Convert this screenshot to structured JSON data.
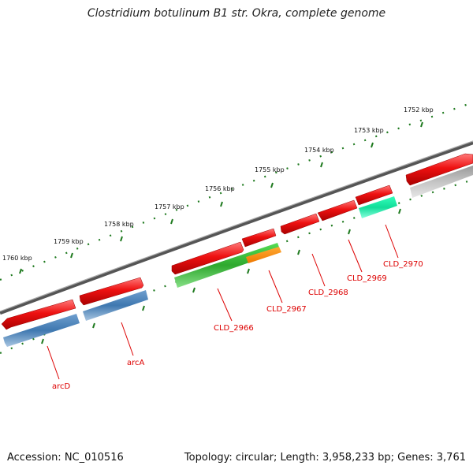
{
  "title": "Clostridium botulinum B1 str. Okra, complete genome",
  "footer": {
    "accession": "Accession: NC_010516",
    "summary": "Topology: circular; Length: 3,958,233 bp; Genes: 3,761"
  },
  "ruler_labels": [
    "1752 kbp",
    "1753 kbp",
    "1754 kbp",
    "1755 kbp",
    "1756 kbp",
    "1757 kbp",
    "1758 kbp",
    "1759 kbp",
    "1760 kbp"
  ],
  "gene_labels": [
    "CLD_2970",
    "CLD_2969",
    "CLD_2968",
    "CLD_2967",
    "CLD_2966",
    "arcA",
    "arcD"
  ],
  "colors": {
    "backbone": "#777777",
    "tick": "#1f7a1f",
    "label": "#dd0000",
    "red": "#ee1111",
    "blue": "#3f78b0",
    "green": "#33bb33",
    "orange": "#ff8800",
    "teal": "#22ddaa",
    "grey": "#bbbbbb"
  }
}
